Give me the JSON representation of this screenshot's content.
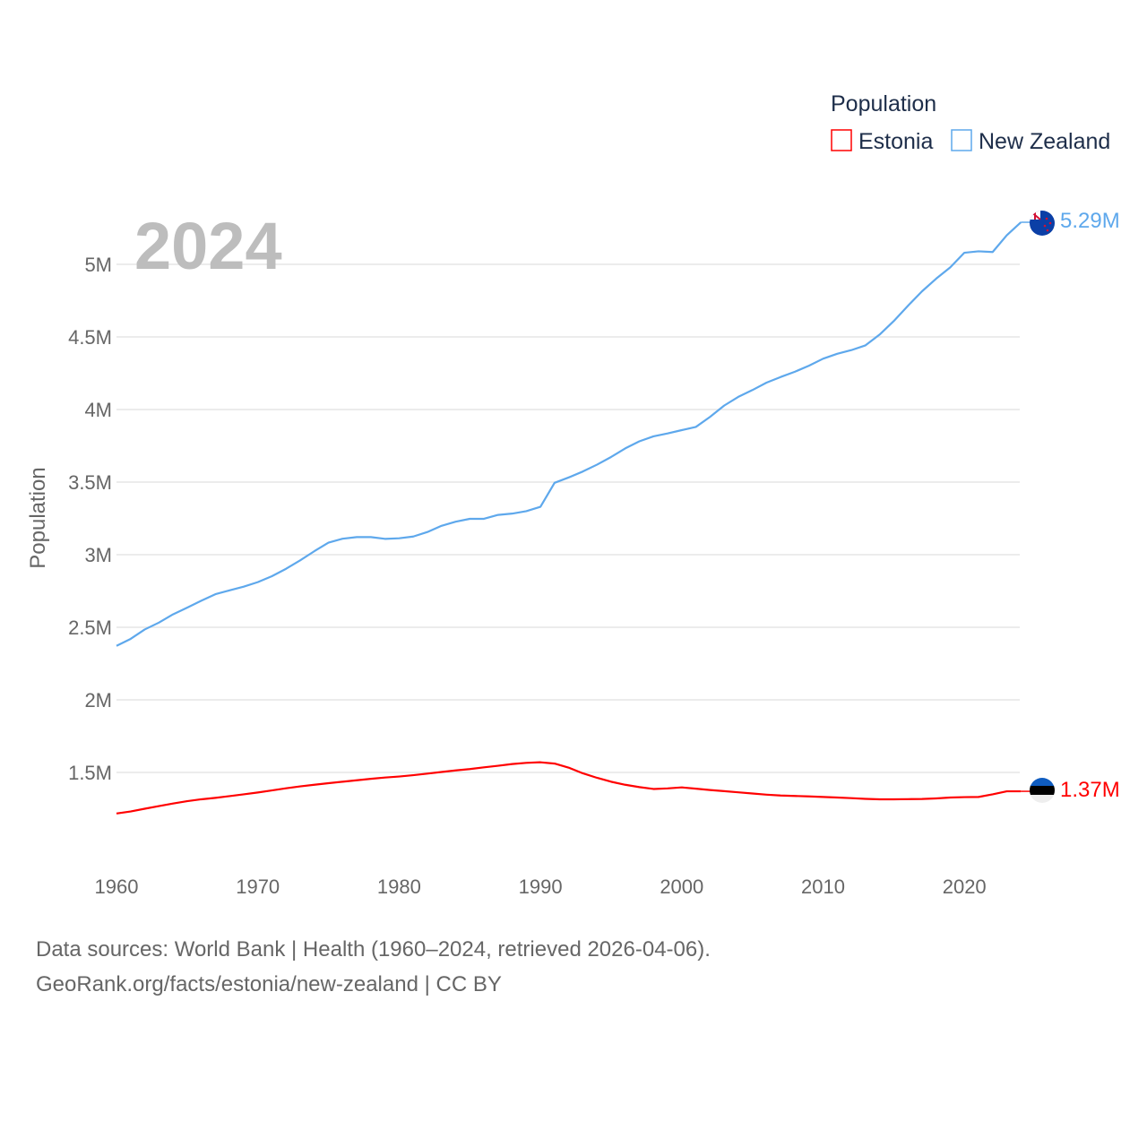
{
  "chart_data": {
    "type": "line",
    "title": "Population",
    "year_watermark": "2024",
    "ylabel": "Population",
    "xlabel": "",
    "xlim": [
      1960,
      2024
    ],
    "ylim": [
      1000000,
      5300000
    ],
    "x_ticks": [
      "1960",
      "1970",
      "1980",
      "1990",
      "2000",
      "2010",
      "2020"
    ],
    "y_ticks": [
      {
        "v": 1.5,
        "label": "1.5M"
      },
      {
        "v": 2,
        "label": "2M"
      },
      {
        "v": 2.5,
        "label": "2.5M"
      },
      {
        "v": 3,
        "label": "3M"
      },
      {
        "v": 3.5,
        "label": "3.5M"
      },
      {
        "v": 4,
        "label": "4M"
      },
      {
        "v": 4.5,
        "label": "4.5M"
      },
      {
        "v": 5,
        "label": "5M"
      }
    ],
    "grid": true,
    "legend_placement": "top-right",
    "units": "millions",
    "x_start": 1960,
    "series": [
      {
        "name": "Estonia",
        "color": "#ff0000",
        "end_label": "1.37M",
        "flag": "estonia-flag",
        "values": [
          1.217,
          1.231,
          1.25,
          1.268,
          1.286,
          1.302,
          1.315,
          1.325,
          1.337,
          1.349,
          1.362,
          1.376,
          1.391,
          1.404,
          1.415,
          1.426,
          1.436,
          1.446,
          1.456,
          1.465,
          1.472,
          1.481,
          1.492,
          1.503,
          1.514,
          1.523,
          1.535,
          1.546,
          1.558,
          1.566,
          1.57,
          1.561,
          1.533,
          1.494,
          1.463,
          1.436,
          1.415,
          1.399,
          1.386,
          1.39,
          1.397,
          1.388,
          1.379,
          1.371,
          1.363,
          1.355,
          1.347,
          1.341,
          1.338,
          1.335,
          1.331,
          1.327,
          1.323,
          1.318,
          1.315,
          1.315,
          1.316,
          1.317,
          1.321,
          1.327,
          1.33,
          1.331,
          1.349,
          1.37,
          1.37
        ]
      },
      {
        "name": "New Zealand",
        "color": "#5ea8ec",
        "end_label": "5.29M",
        "flag": "new-zealand-flag",
        "values": [
          2.372,
          2.42,
          2.485,
          2.532,
          2.589,
          2.635,
          2.683,
          2.728,
          2.754,
          2.78,
          2.811,
          2.852,
          2.903,
          2.961,
          3.024,
          3.083,
          3.11,
          3.121,
          3.121,
          3.109,
          3.113,
          3.125,
          3.156,
          3.199,
          3.227,
          3.247,
          3.247,
          3.274,
          3.283,
          3.3,
          3.33,
          3.495,
          3.532,
          3.573,
          3.62,
          3.673,
          3.732,
          3.781,
          3.815,
          3.835,
          3.858,
          3.88,
          3.949,
          4.027,
          4.087,
          4.134,
          4.185,
          4.224,
          4.26,
          4.302,
          4.35,
          4.384,
          4.409,
          4.442,
          4.516,
          4.609,
          4.714,
          4.814,
          4.901,
          4.979,
          5.08,
          5.09,
          5.085,
          5.2,
          5.29
        ]
      }
    ]
  },
  "footer": {
    "line1": "Data sources: World Bank | Health (1960–2024, retrieved 2026-04-06).",
    "line2": "GeoRank.org/facts/estonia/new-zealand | CC BY"
  }
}
